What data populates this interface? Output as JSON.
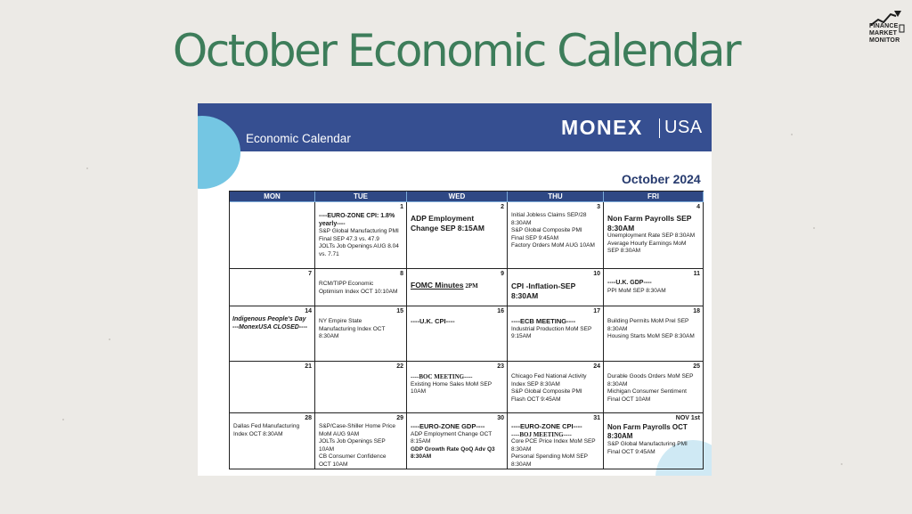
{
  "title": "October Economic Calendar",
  "logo": {
    "lines": [
      "FINANCE",
      "MARKET",
      "MONITOR"
    ]
  },
  "banner": {
    "title": "Economic Calendar",
    "brand": "MONEX",
    "brand_suffix": "USA"
  },
  "month": "October 2024",
  "headers": [
    "MON",
    "TUE",
    "WED",
    "THU",
    "FRI"
  ],
  "weeks": [
    [
      {
        "day": "",
        "lines": []
      },
      {
        "day": "1",
        "lines": [
          "----EURO-ZONE CPI: 1.8% yearly----",
          "S&P Global Manufacturing PMI Final SEP 47.3 vs. 47.9",
          "JOLTs Job Openings AUG 8.04 vs. 7.71"
        ]
      },
      {
        "day": "2",
        "lines": [
          "ADP Employment Change SEP 8:15AM"
        ]
      },
      {
        "day": "3",
        "lines": [
          "Initial Jobless Claims SEP/28 8:30AM",
          "S&P Global Composite PMI Final SEP 9:45AM",
          "Factory Orders MoM AUG 10AM"
        ]
      },
      {
        "day": "4",
        "lines": [
          "Non Farm Payrolls SEP 8:30AM",
          "Unemployment Rate SEP 8:30AM",
          "Average Hourly Earnings MoM SEP 8:30AM"
        ]
      }
    ],
    [
      {
        "day": "7",
        "lines": []
      },
      {
        "day": "8",
        "lines": [
          "RCM/TIPP Economic Optimism Index OCT 10:10AM"
        ]
      },
      {
        "day": "9",
        "lines": [
          "FOMC Minutes",
          "2PM"
        ]
      },
      {
        "day": "10",
        "lines": [
          "CPI -Inflation-SEP 8:30AM"
        ]
      },
      {
        "day": "11",
        "lines": [
          "----U.K. GDP----",
          "PPI MoM SEP 8:30AM"
        ]
      }
    ],
    [
      {
        "day": "14",
        "lines": [
          "Indigenous People's Day",
          "---MonexUSA CLOSED----"
        ]
      },
      {
        "day": "15",
        "lines": [
          "NY Empire State Manufacturing Index OCT 8:30AM"
        ]
      },
      {
        "day": "16",
        "lines": [
          "----U.K. CPI----"
        ]
      },
      {
        "day": "17",
        "lines": [
          "----ECB MEETING----",
          "Industrial Production MoM SEP 9:15AM"
        ]
      },
      {
        "day": "18",
        "lines": [
          "Building Permits MoM Prel SEP 8:30AM",
          "Housing Starts MoM SEP 8:30AM"
        ]
      }
    ],
    [
      {
        "day": "21",
        "lines": []
      },
      {
        "day": "22",
        "lines": []
      },
      {
        "day": "23",
        "lines": [
          "----BOC MEETING----",
          "Existing Home Sales MoM SEP 10AM"
        ]
      },
      {
        "day": "24",
        "lines": [
          "Chicago Fed National Activity Index SEP 8:30AM",
          "S&P Global Composite PMI Flash OCT 9:45AM"
        ]
      },
      {
        "day": "25",
        "lines": [
          "Durable Goods Orders MoM SEP 8:30AM",
          "Michigan Consumer Sentiment Final OCT 10AM"
        ]
      }
    ],
    [
      {
        "day": "28",
        "lines": [
          "Dallas Fed Manufacturing Index OCT 8:30AM"
        ]
      },
      {
        "day": "29",
        "lines": [
          "S&P/Case-Shiller Home Price MoM AUG 9AM",
          "JOLTs Job Openings SEP 10AM",
          "CB Consumer Confidence OCT 10AM"
        ]
      },
      {
        "day": "30",
        "lines": [
          "----EURO-ZONE GDP----",
          "ADP Employment Change OCT 8:15AM",
          "GDP Growth Rate QoQ Adv Q3 8:30AM"
        ]
      },
      {
        "day": "31",
        "lines": [
          "----EURO-ZONE CPI----",
          "----BOJ MEETING----",
          "Core PCE Price Index MoM SEP 8:30AM",
          "Personal Spending MoM SEP 8:30AM"
        ]
      },
      {
        "day": "NOV 1st",
        "lines": [
          "Non Farm Payrolls OCT 8:30AM",
          "S&P Global Manufacturing PMI Final OCT 9:45AM"
        ]
      }
    ]
  ]
}
